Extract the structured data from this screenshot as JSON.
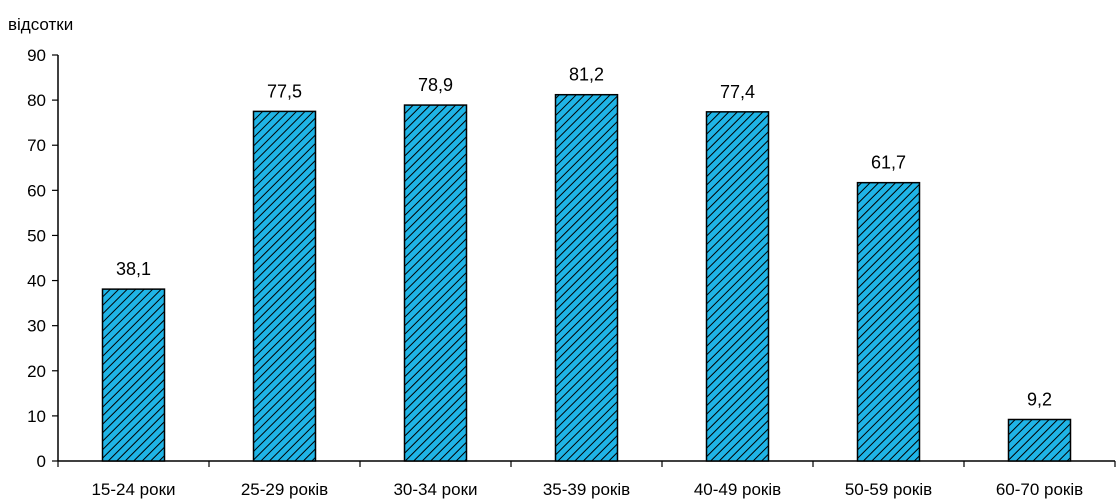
{
  "chart_data": {
    "type": "bar",
    "ylabel": "відсотки",
    "xlabel": "",
    "ylim": [
      0,
      90
    ],
    "ytick_step": 10,
    "categories": [
      "15-24 роки",
      "25-29 років",
      "30-34 роки",
      "35-39 років",
      "40-49 років",
      "50-59 років",
      "60-70 років"
    ],
    "values": [
      38.1,
      77.5,
      78.9,
      81.2,
      77.4,
      61.7,
      9.2
    ],
    "value_labels": [
      "38,1",
      "77,5",
      "78,9",
      "81,2",
      "77,4",
      "61,7",
      "9,2"
    ],
    "bar_fill": "#1fb4e6",
    "bar_hatch": "#000000",
    "grid": false,
    "legend": "none"
  }
}
